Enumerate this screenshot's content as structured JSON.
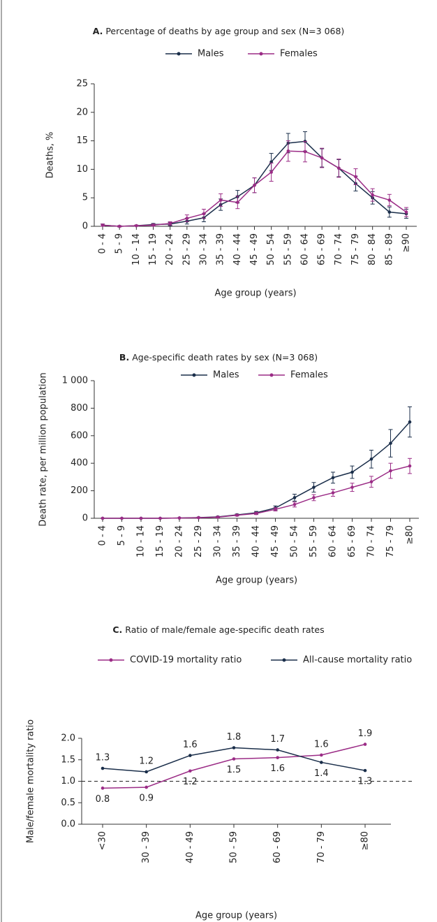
{
  "chart_data": [
    {
      "type": "line",
      "label": "A.",
      "title": "Percentage of deaths by age group and sex (N=3 068)",
      "x_label": "Age group (years)",
      "y_label": "Deaths, %",
      "categories": [
        "0 - 4",
        "5 - 9",
        "10 - 14",
        "15 - 19",
        "20 - 24",
        "25 - 29",
        "30 - 34",
        "35 - 39",
        "40 - 44",
        "45 - 49",
        "50 - 54",
        "55 - 59",
        "60 - 64",
        "65 - 69",
        "70 - 74",
        "75 - 79",
        "80 - 84",
        "85 - 89",
        "≥90"
      ],
      "series": [
        {
          "name": "Males",
          "color": "#1a2e4a",
          "values": [
            0.2,
            0,
            0.1,
            0.3,
            0.4,
            0.9,
            1.5,
            3.8,
            5.2,
            7.2,
            11.3,
            14.6,
            14.9,
            12.0,
            10.2,
            7.5,
            5.0,
            2.5,
            2.2
          ],
          "errors": [
            0.2,
            0.1,
            0.1,
            0.2,
            0.3,
            0.5,
            0.7,
            1.0,
            1.1,
            1.3,
            1.5,
            1.7,
            1.7,
            1.6,
            1.5,
            1.3,
            1.1,
            0.9,
            0.8
          ]
        },
        {
          "name": "Females",
          "color": "#9b2c86",
          "values": [
            0.2,
            0,
            0.1,
            0.2,
            0.5,
            1.4,
            2.2,
            4.6,
            4.2,
            7.2,
            9.5,
            13.2,
            13.1,
            12.0,
            10.2,
            8.7,
            5.5,
            4.6,
            2.5
          ],
          "errors": [
            0.2,
            0.1,
            0.1,
            0.2,
            0.3,
            0.6,
            0.8,
            1.1,
            1.1,
            1.3,
            1.6,
            1.8,
            1.8,
            1.7,
            1.6,
            1.4,
            1.1,
            1.0,
            0.8
          ]
        }
      ],
      "ylim": [
        0,
        25
      ],
      "yticks": [
        0,
        5,
        10,
        15,
        20,
        25
      ]
    },
    {
      "type": "line",
      "label": "B.",
      "title": "Age-specific death rates by sex (N=3 068)",
      "x_label": "Age group (years)",
      "y_label": "Death rate, per million population",
      "categories": [
        "0 - 4",
        "5 - 9",
        "10 - 14",
        "15 - 19",
        "20 - 24",
        "25 - 29",
        "30 - 34",
        "35 - 39",
        "40 - 44",
        "45 - 49",
        "50 - 54",
        "55 - 59",
        "60 - 64",
        "65 - 69",
        "70 - 74",
        "75 - 79",
        "≥80"
      ],
      "series": [
        {
          "name": "Males",
          "color": "#1a2e4a",
          "values": [
            0,
            0,
            0,
            0,
            2,
            5,
            10,
            25,
            40,
            75,
            150,
            225,
            295,
            335,
            430,
            545,
            700
          ],
          "errors": [
            1,
            1,
            1,
            1,
            2,
            3,
            4,
            6,
            10,
            15,
            25,
            35,
            40,
            45,
            65,
            100,
            110
          ]
        },
        {
          "name": "Females",
          "color": "#9b2c86",
          "values": [
            0,
            0,
            0,
            0,
            2,
            4,
            8,
            22,
            35,
            65,
            100,
            150,
            185,
            225,
            265,
            345,
            380
          ],
          "errors": [
            1,
            1,
            1,
            1,
            2,
            3,
            4,
            6,
            8,
            12,
            18,
            22,
            25,
            30,
            40,
            55,
            55
          ]
        }
      ],
      "ylim": [
        0,
        1000
      ],
      "yticks": [
        0,
        200,
        400,
        600,
        800,
        {
          "value": 1000,
          "label": "1 000"
        }
      ]
    },
    {
      "type": "line",
      "label": "C.",
      "title": "Ratio of male/female age-specific death rates",
      "x_label": "Age group (years)",
      "y_label": "Male/female mortality ratio",
      "categories": [
        "<30",
        "30 - 39",
        "40 - 49",
        "50 - 59",
        "60 - 69",
        "70 - 79",
        "≥80"
      ],
      "series": [
        {
          "name": "COVID-19 mortality ratio",
          "color": "#9b2c86",
          "values": [
            0.84,
            0.86,
            1.24,
            1.52,
            1.55,
            1.61,
            1.86
          ],
          "value_labels": [
            "0.8",
            "0.9",
            "1.2",
            "1.5",
            "1.6",
            "1.6",
            "1.9"
          ]
        },
        {
          "name": "All-cause mortality ratio",
          "color": "#1a2e4a",
          "values": [
            1.3,
            1.22,
            1.6,
            1.78,
            1.73,
            1.44,
            1.25
          ],
          "value_labels": [
            "1.3",
            "1.2",
            "1.6",
            "1.8",
            "1.7",
            "1.4",
            "1.3"
          ]
        }
      ],
      "reference_line": 1,
      "ylim": [
        0,
        2
      ],
      "yticks": [
        {
          "value": 0,
          "label": "0.0"
        },
        0.5,
        {
          "value": 1,
          "label": "1.0"
        },
        1.5,
        {
          "value": 2,
          "label": "2.0"
        }
      ]
    }
  ]
}
